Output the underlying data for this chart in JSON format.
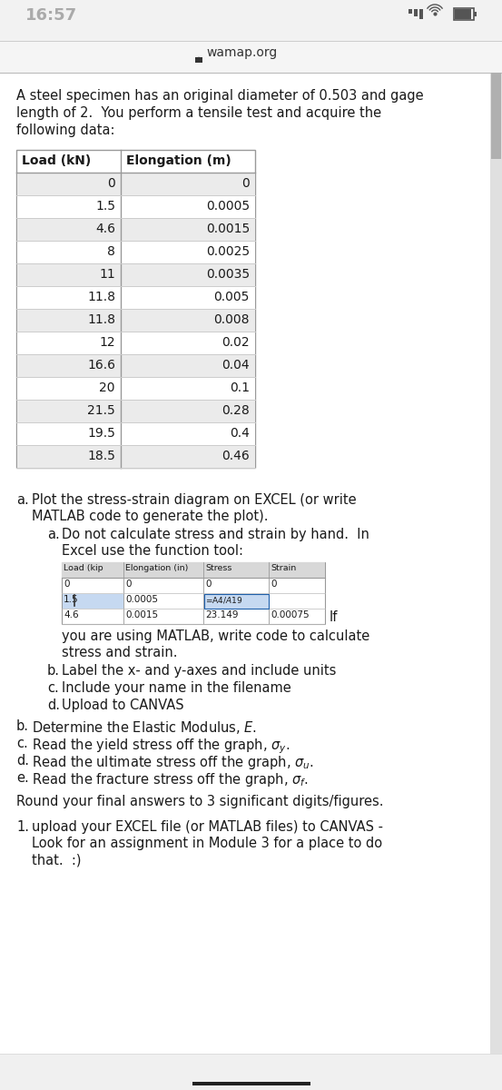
{
  "status_bar_time": "16:57",
  "url": "wamap.org",
  "intro_lines": [
    "A steel specimen has an original diameter of 0.503 and gage",
    "length of 2.  You perform a tensile test and acquire the",
    "following data:"
  ],
  "table_header": [
    "Load (kN)",
    "Elongation (m)"
  ],
  "table_data": [
    [
      "0",
      "0"
    ],
    [
      "1.5",
      "0.0005"
    ],
    [
      "4.6",
      "0.0015"
    ],
    [
      "8",
      "0.0025"
    ],
    [
      "11",
      "0.0035"
    ],
    [
      "11.8",
      "0.005"
    ],
    [
      "11.8",
      "0.008"
    ],
    [
      "12",
      "0.02"
    ],
    [
      "16.6",
      "0.04"
    ],
    [
      "20",
      "0.1"
    ],
    [
      "21.5",
      "0.28"
    ],
    [
      "19.5",
      "0.4"
    ],
    [
      "18.5",
      "0.46"
    ]
  ],
  "excel_headers": [
    "Load (kip",
    "Elongation (in)",
    "Stress",
    "Strain"
  ],
  "excel_rows": [
    [
      "0",
      "0",
      "0",
      "0"
    ],
    [
      "1.5",
      "0.0005",
      "=A4/$A$19",
      ""
    ],
    [
      "4.6",
      "0.0015",
      "23.149",
      "0.00075"
    ]
  ],
  "bg_color": "#f2f2f2",
  "white": "#ffffff",
  "text_color": "#1a1a1a",
  "border_color": "#999999",
  "row_even": "#ebebeb",
  "row_odd": "#ffffff",
  "excel_blue": "#c6d9f1",
  "status_time_color": "#aaaaaa",
  "status_icon_color": "#555555",
  "url_bar_bg": "#f5f5f5",
  "url_text_color": "#333333",
  "scrollbar_bg": "#e0e0e0",
  "scrollbar_thumb": "#b0b0b0",
  "bottom_bar_color": "#222222"
}
